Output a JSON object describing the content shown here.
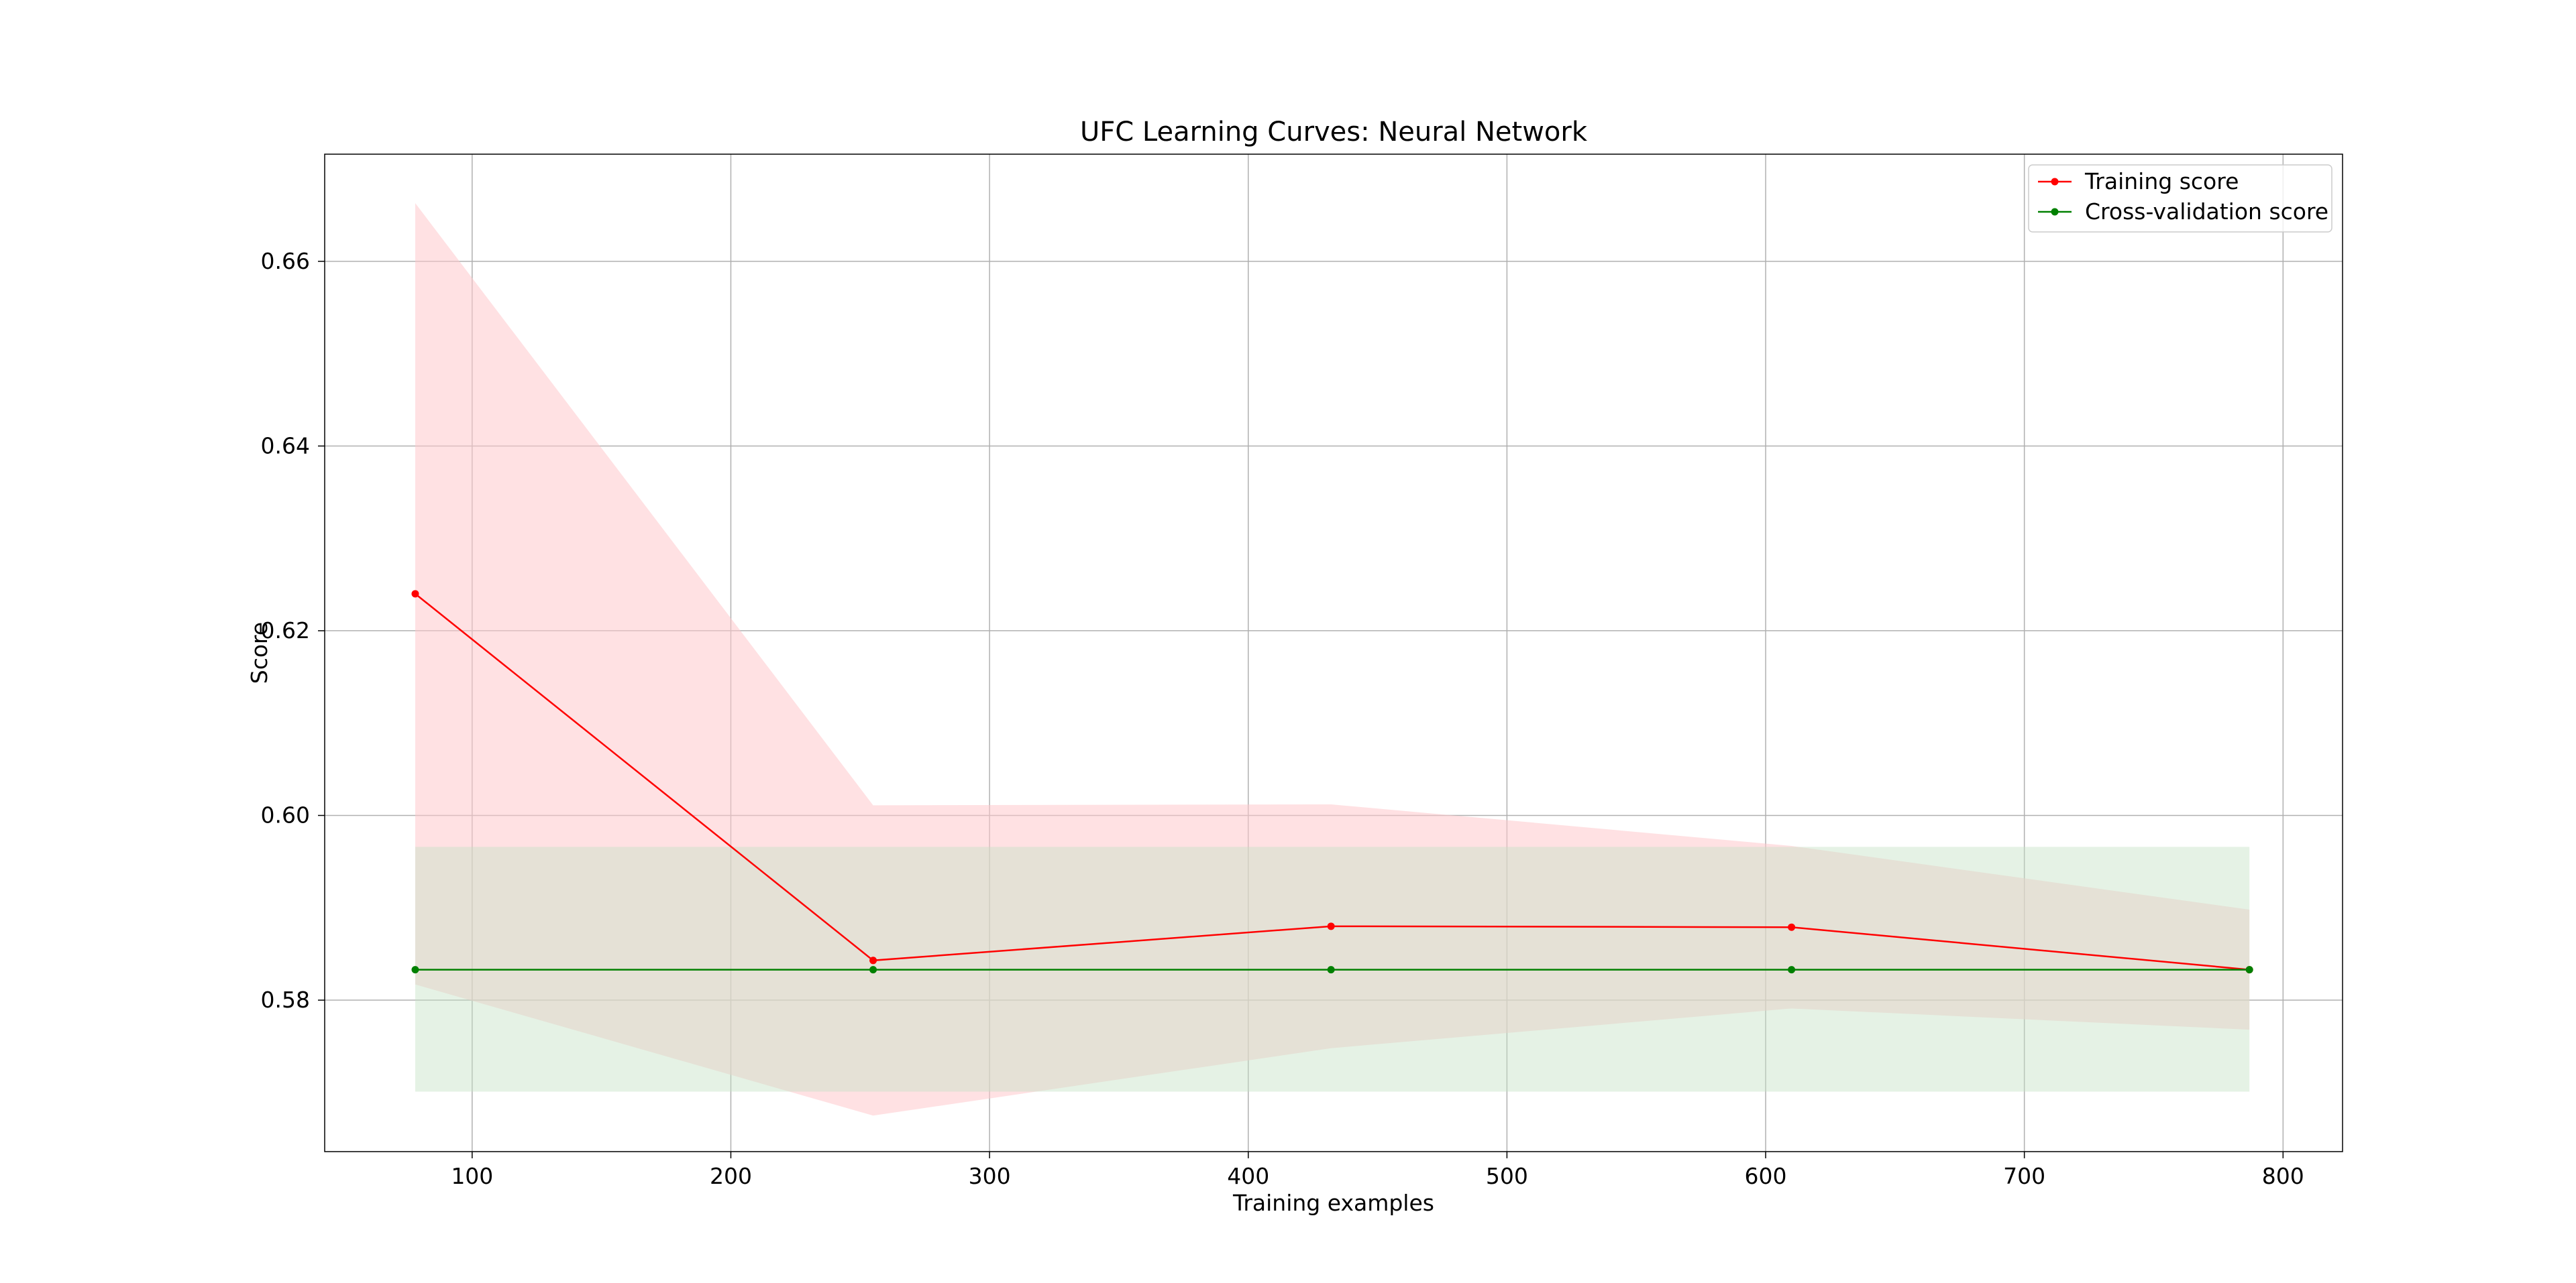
{
  "chart_data": {
    "type": "line",
    "title": "UFC Learning Curves: Neural Network",
    "xlabel": "Training examples",
    "ylabel": "Score",
    "xlim": [
      43,
      823
    ],
    "ylim": [
      0.5636,
      0.6716
    ],
    "x_ticks": [
      100,
      200,
      300,
      400,
      500,
      600,
      700,
      800
    ],
    "y_ticks": [
      0.58,
      0.6,
      0.62,
      0.64,
      0.66
    ],
    "x_tick_labels": [
      "100",
      "200",
      "300",
      "400",
      "500",
      "600",
      "700",
      "800"
    ],
    "y_tick_labels": [
      "0.58",
      "0.60",
      "0.62",
      "0.64",
      "0.66"
    ],
    "grid": true,
    "legend_position": "top-right",
    "x": [
      78,
      255,
      432,
      610,
      787
    ],
    "series": [
      {
        "name": "Training score",
        "color": "#ff0000",
        "band_color": "#ffc8cc",
        "values": [
          0.624,
          0.5843,
          0.588,
          0.5879,
          0.5833
        ],
        "band_upper": [
          0.6663,
          0.6011,
          0.6012,
          0.5967,
          0.5898
        ],
        "band_lower": [
          0.5817,
          0.5675,
          0.5748,
          0.5791,
          0.5768
        ]
      },
      {
        "name": "Cross-validation score",
        "color": "#008000",
        "band_color": "#c5e3c5",
        "values": [
          0.5833,
          0.5833,
          0.5833,
          0.5833,
          0.5833
        ],
        "band_upper": [
          0.5966,
          0.5966,
          0.5966,
          0.5966,
          0.5966
        ],
        "band_lower": [
          0.5701,
          0.5701,
          0.5701,
          0.5701,
          0.5701
        ]
      }
    ]
  }
}
